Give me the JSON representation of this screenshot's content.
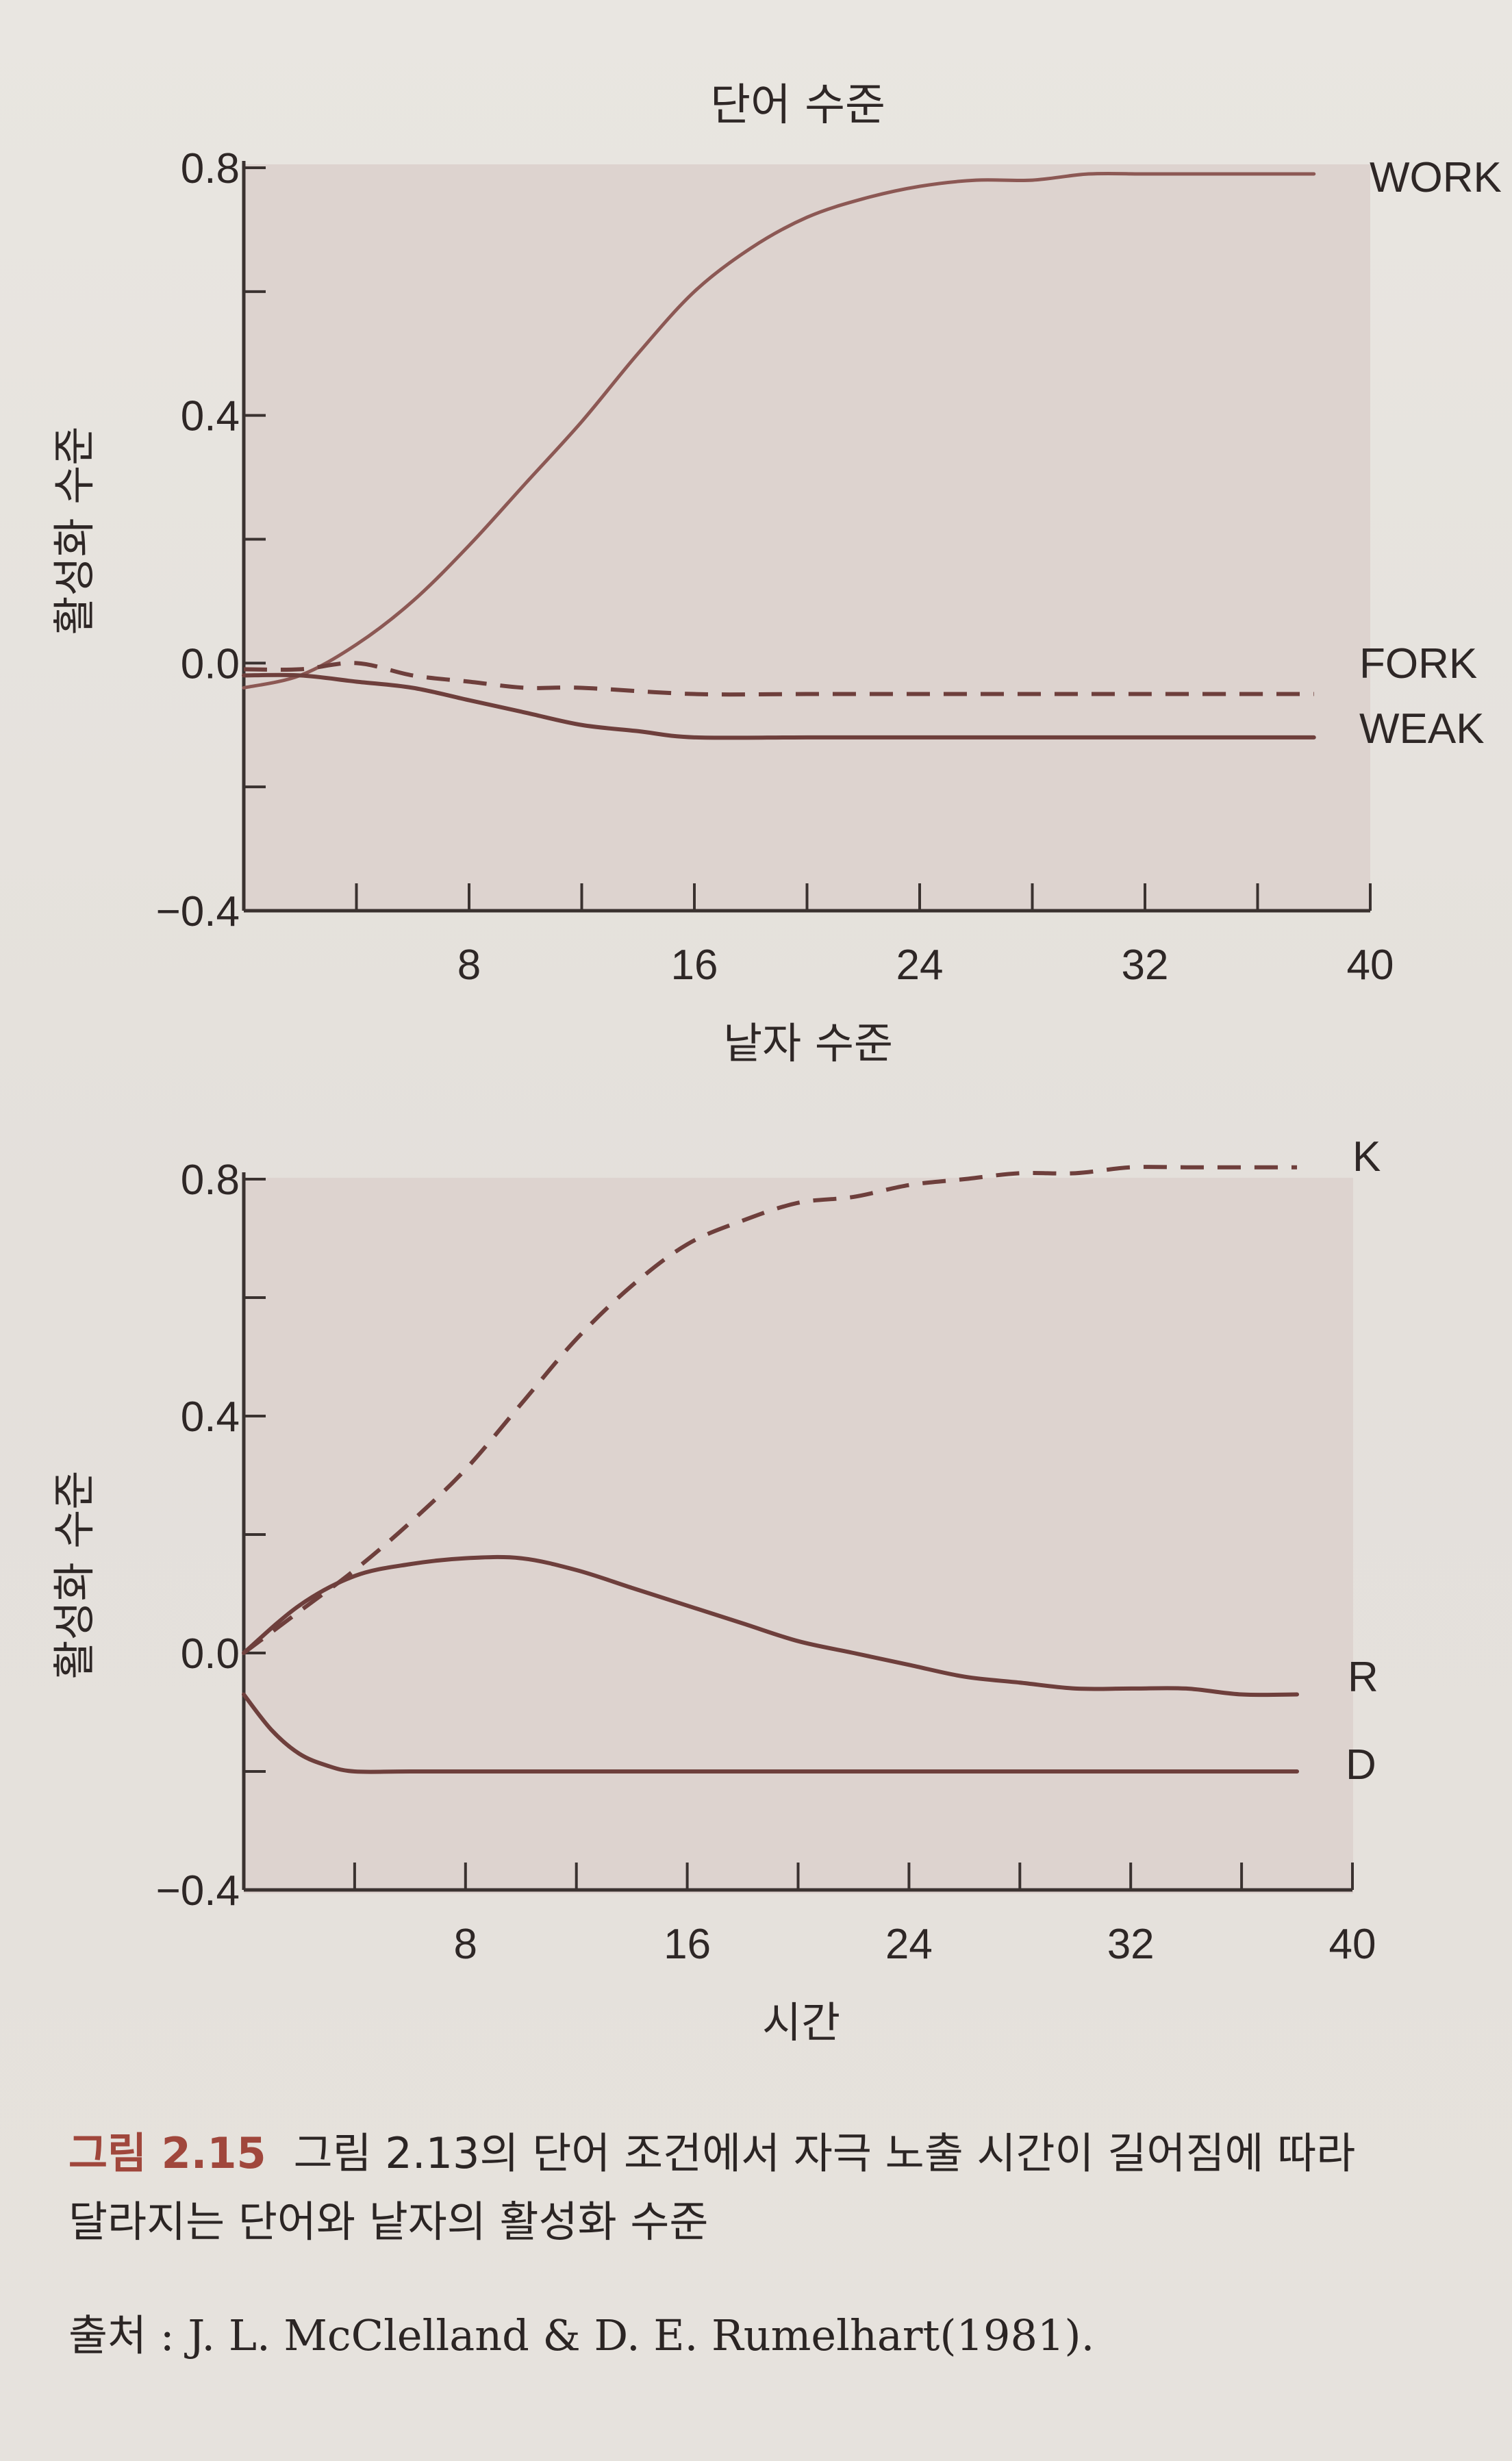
{
  "chart_data": [
    {
      "type": "line",
      "title": "단어 수준",
      "xlabel": "낱자 수준",
      "ylabel": "활성화 수준",
      "xlim": [
        0,
        40
      ],
      "ylim": [
        -0.4,
        0.8
      ],
      "x_ticks": [
        "8",
        "16",
        "24",
        "32",
        "40"
      ],
      "y_ticks": [
        "0.8",
        "0.4",
        "0.0",
        "−0.4"
      ],
      "series": [
        {
          "name": "WORK",
          "style": "solid",
          "x": [
            0,
            2,
            4,
            6,
            8,
            10,
            12,
            14,
            16,
            18,
            20,
            22,
            24,
            26,
            28,
            30,
            32,
            34,
            36,
            38
          ],
          "values": [
            -0.04,
            -0.02,
            0.03,
            0.1,
            0.19,
            0.29,
            0.39,
            0.5,
            0.6,
            0.67,
            0.72,
            0.75,
            0.77,
            0.78,
            0.78,
            0.79,
            0.79,
            0.79,
            0.79,
            0.79
          ]
        },
        {
          "name": "FORK",
          "style": "dashed",
          "x": [
            0,
            2,
            4,
            6,
            8,
            10,
            12,
            16,
            20,
            24,
            28,
            32,
            36,
            38
          ],
          "values": [
            -0.01,
            -0.01,
            0.0,
            -0.02,
            -0.03,
            -0.04,
            -0.04,
            -0.05,
            -0.05,
            -0.05,
            -0.05,
            -0.05,
            -0.05,
            -0.05
          ]
        },
        {
          "name": "WEAK",
          "style": "solid",
          "x": [
            0,
            2,
            4,
            6,
            8,
            10,
            12,
            14,
            16,
            20,
            24,
            28,
            32,
            36,
            38
          ],
          "values": [
            -0.02,
            -0.02,
            -0.03,
            -0.04,
            -0.06,
            -0.08,
            -0.1,
            -0.11,
            -0.12,
            -0.12,
            -0.12,
            -0.12,
            -0.12,
            -0.12,
            -0.12
          ]
        }
      ]
    },
    {
      "type": "line",
      "title": "",
      "xlabel": "시간",
      "ylabel": "활성화 수준",
      "xlim": [
        0,
        40
      ],
      "ylim": [
        -0.4,
        0.8
      ],
      "x_ticks": [
        "8",
        "16",
        "24",
        "32",
        "40"
      ],
      "y_ticks": [
        "0.8",
        "0.4",
        "0.0",
        "−0.4"
      ],
      "series": [
        {
          "name": "K",
          "style": "dashed",
          "x": [
            0,
            2,
            4,
            6,
            8,
            10,
            12,
            14,
            16,
            18,
            20,
            22,
            24,
            26,
            28,
            30,
            32,
            34,
            36,
            38
          ],
          "values": [
            0.0,
            0.07,
            0.14,
            0.22,
            0.31,
            0.42,
            0.53,
            0.62,
            0.69,
            0.73,
            0.76,
            0.77,
            0.79,
            0.8,
            0.81,
            0.81,
            0.82,
            0.82,
            0.82,
            0.82
          ]
        },
        {
          "name": "R",
          "style": "solid",
          "x": [
            0,
            2,
            4,
            6,
            8,
            10,
            12,
            14,
            16,
            18,
            20,
            22,
            24,
            26,
            28,
            30,
            32,
            34,
            36,
            38
          ],
          "values": [
            0.0,
            0.08,
            0.13,
            0.15,
            0.16,
            0.16,
            0.14,
            0.11,
            0.08,
            0.05,
            0.02,
            0.0,
            -0.02,
            -0.04,
            -0.05,
            -0.06,
            -0.06,
            -0.06,
            -0.07,
            -0.07
          ]
        },
        {
          "name": "D",
          "style": "solid",
          "x": [
            0,
            1,
            2,
            3,
            4,
            6,
            10,
            16,
            24,
            32,
            38
          ],
          "values": [
            -0.07,
            -0.13,
            -0.17,
            -0.19,
            -0.2,
            -0.2,
            -0.2,
            -0.2,
            -0.2,
            -0.2,
            -0.2
          ]
        }
      ]
    }
  ],
  "caption": {
    "figure_label": "그림 2.15",
    "line1": "그림 2.13의 단어 조건에서 자극 노출 시간이 길어짐에 따라",
    "line2": "달라지는 단어와 낱자의 활성화 수준"
  },
  "source": "출처 : J. L. McClelland & D. E. Rumelhart(1981)."
}
